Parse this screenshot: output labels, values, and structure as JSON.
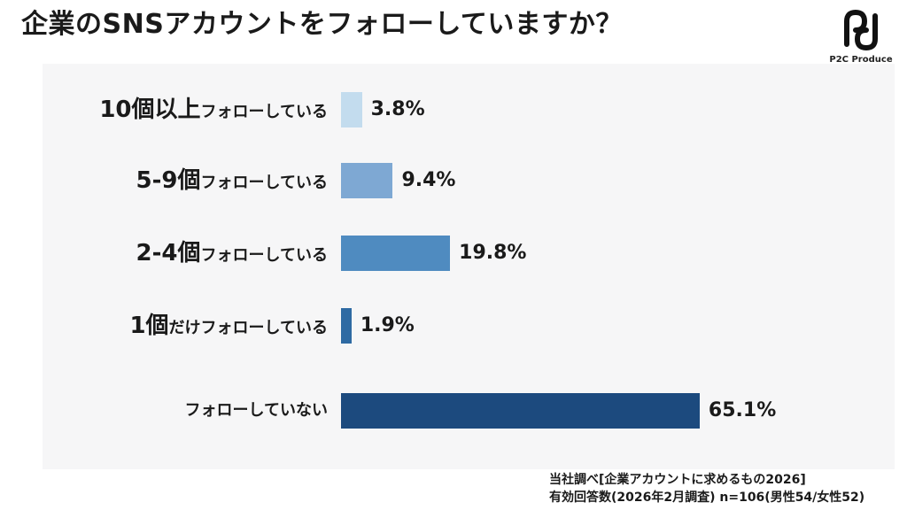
{
  "header": {
    "title": "企業のSNSアカウントをフォローしていますか？",
    "logo_text": "P2C Produce"
  },
  "chart_data": {
    "type": "bar",
    "orientation": "horizontal",
    "categories": [
      {
        "big": "10個以上",
        "small": "フォローしている"
      },
      {
        "big": "5-9個",
        "small": "フォローしている"
      },
      {
        "big": "2-4個",
        "small": "フォローしている"
      },
      {
        "big": "1個",
        "small": "だけフォローしている"
      },
      {
        "big": "",
        "small": "フォローしていない"
      }
    ],
    "values": [
      3.8,
      9.4,
      19.8,
      1.9,
      65.1
    ],
    "value_labels": [
      "3.8%",
      "9.4%",
      "19.8%",
      "1.9%",
      "65.1%"
    ],
    "colors": [
      "#c3dcee",
      "#7ea8d3",
      "#4f8bc0",
      "#2e6aa3",
      "#1c4a7e"
    ],
    "xlim": [
      0,
      100
    ],
    "grid": false,
    "legend": "none"
  },
  "footer": {
    "source_line1": "当社調べ[企業アカウントに求めるもの2026]",
    "source_line2": "有効回答数(2026年2月調査) n=106(男性54/女性52)"
  }
}
